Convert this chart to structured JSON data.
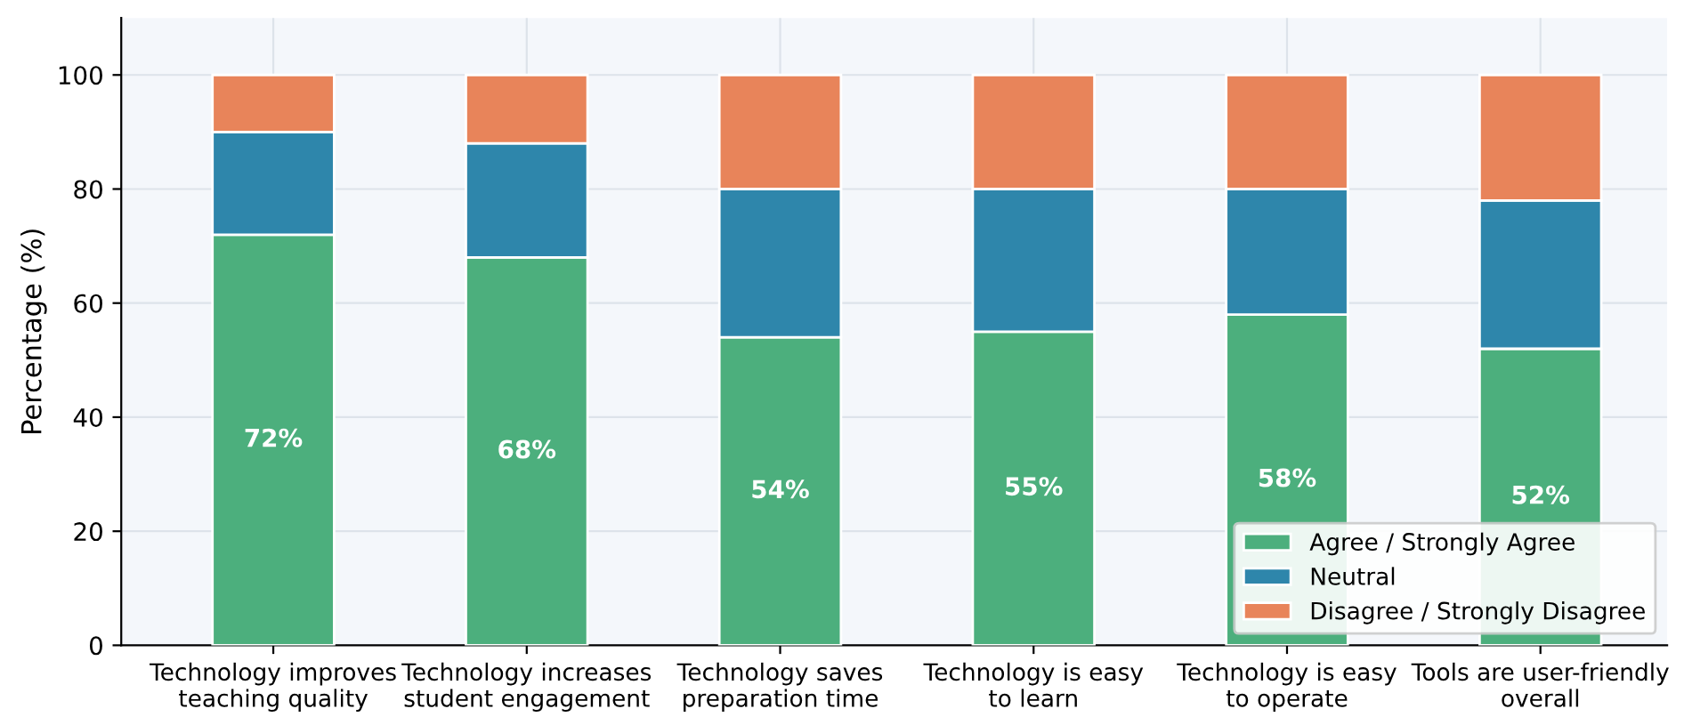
{
  "chart_data": {
    "type": "bar",
    "stacked": true,
    "ylabel": "Percentage (%)",
    "categories": [
      "Technology improves\nteaching quality",
      "Technology increases\nstudent engagement",
      "Technology saves\npreparation time",
      "Technology is easy\nto learn",
      "Technology is easy\nto operate",
      "Tools are user-friendly\noverall"
    ],
    "series": [
      {
        "name": "Agree / Strongly Agree",
        "color": "#4caf7d",
        "values": [
          72,
          68,
          54,
          55,
          58,
          52
        ],
        "value_labels": [
          "72%",
          "68%",
          "54%",
          "55%",
          "58%",
          "52%"
        ]
      },
      {
        "name": "Neutral",
        "color": "#2e86ab",
        "values": [
          18,
          20,
          26,
          25,
          22,
          26
        ]
      },
      {
        "name": "Disagree / Strongly Disagree",
        "color": "#e8845a",
        "values": [
          10,
          12,
          20,
          20,
          20,
          22
        ]
      }
    ],
    "ylim": [
      0,
      110
    ],
    "yticks": [
      0,
      20,
      40,
      60,
      80,
      100
    ],
    "grid": true,
    "legend": "bottom right"
  }
}
